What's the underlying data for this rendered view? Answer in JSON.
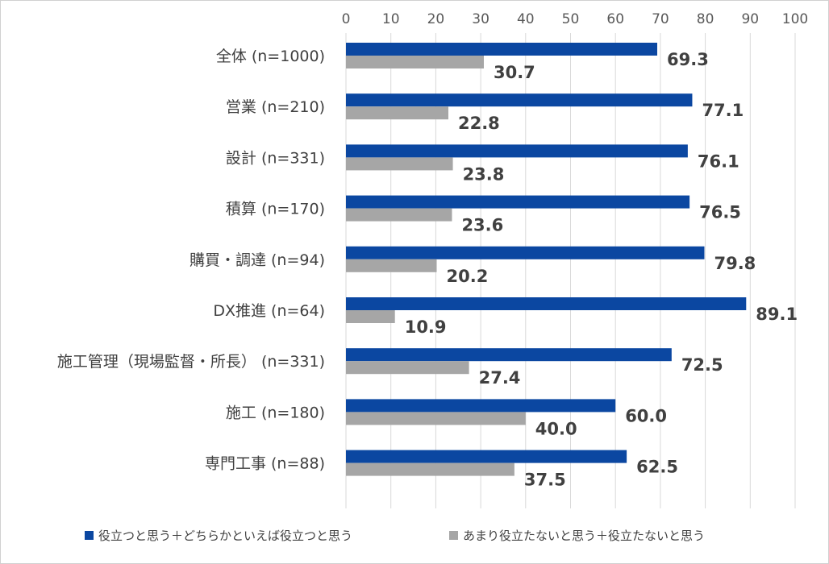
{
  "chart_data": {
    "type": "bar",
    "orientation": "horizontal",
    "categories": [
      "全体 (n=1000)",
      "営業 (n=210)",
      "設計 (n=331)",
      "積算 (n=170)",
      "購買・調達 (n=94)",
      "DX推進 (n=64)",
      "施工管理（現場監督・所長） (n=331)",
      "施工 (n=180)",
      "専門工事 (n=88)"
    ],
    "series": [
      {
        "name": "役立つと思う＋どちらかといえば役立つと思う",
        "color": "#0b47a1",
        "values": [
          69.3,
          77.1,
          76.1,
          76.5,
          79.8,
          89.1,
          72.5,
          60.0,
          62.5
        ],
        "labels": [
          "69.3",
          "77.1",
          "76.1",
          "76.5",
          "79.8",
          "89.1",
          "72.5",
          "60.0",
          "62.5"
        ]
      },
      {
        "name": "あまり役立たないと思う＋役立たないと思う",
        "color": "#a6a6a6",
        "values": [
          30.7,
          22.8,
          23.8,
          23.6,
          20.2,
          10.9,
          27.4,
          40.0,
          37.5
        ],
        "labels": [
          "30.7",
          "22.8",
          "23.8",
          "23.6",
          "20.2",
          "10.9",
          "27.4",
          "40.0",
          "37.5"
        ]
      }
    ],
    "xlim": [
      0,
      100
    ],
    "xticks": [
      "0",
      "10",
      "20",
      "30",
      "40",
      "50",
      "60",
      "70",
      "80",
      "90",
      "100"
    ],
    "grid": true,
    "legend_position": "bottom"
  }
}
